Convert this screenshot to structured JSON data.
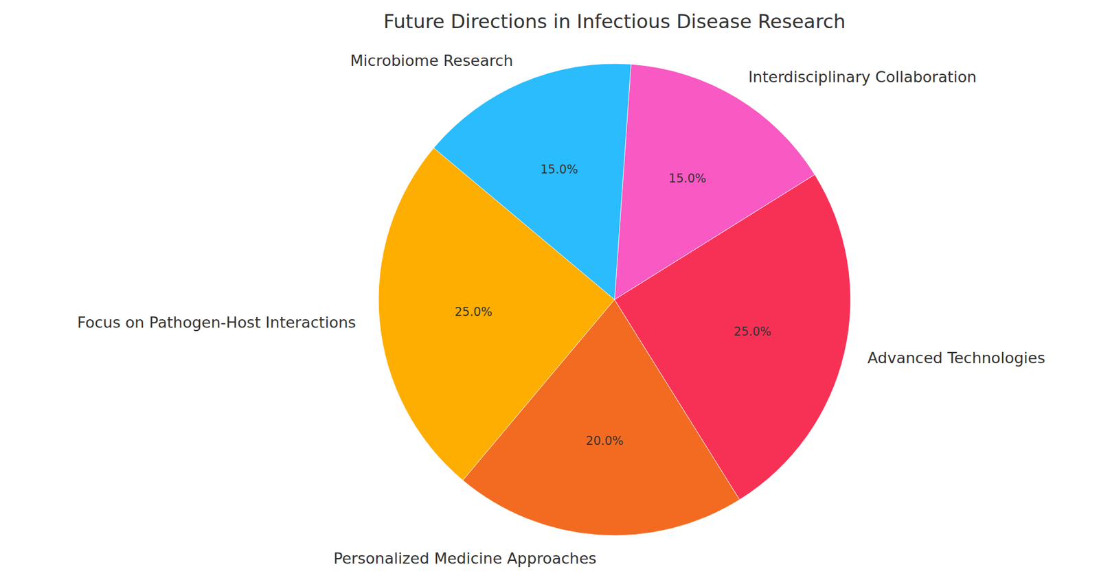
{
  "chart_data": {
    "type": "pie",
    "title": "Future Directions in Infectious Disease Research",
    "categories": [
      "Focus on Pathogen-Host Interactions",
      "Personalized Medicine Approaches",
      "Advanced Technologies",
      "Interdisciplinary Collaboration",
      "Microbiome Research"
    ],
    "values": [
      25,
      20,
      25,
      15,
      15
    ],
    "value_labels": [
      "25.0%",
      "20.0%",
      "25.0%",
      "15.0%",
      "15.0%"
    ],
    "colors": [
      "#fdae00",
      "#f26b21",
      "#f73155",
      "#f859c2",
      "#2abcfc"
    ],
    "data_labels": true
  }
}
